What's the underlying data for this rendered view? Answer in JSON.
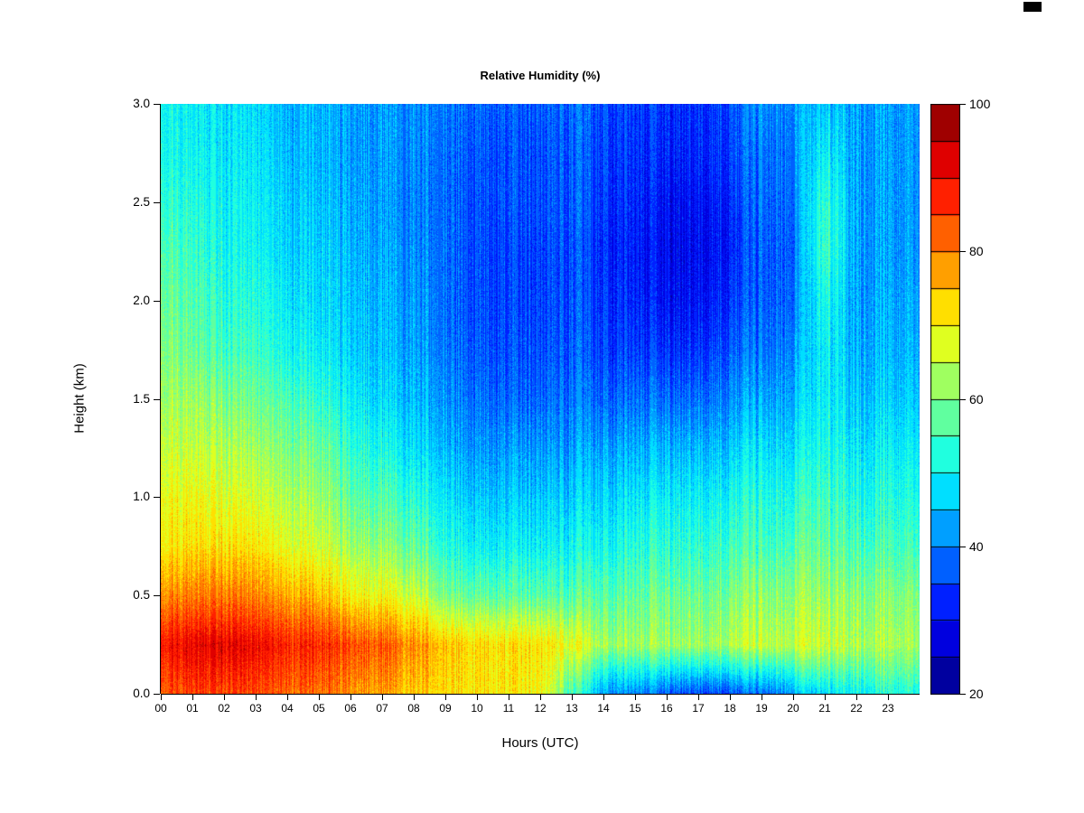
{
  "chart_data": {
    "type": "heatmap",
    "title": "Relative Humidity (%)",
    "xlabel": "Hours (UTC)",
    "ylabel": "Height (km)",
    "x_range": [
      0,
      24
    ],
    "x_hours": [
      0,
      1,
      2,
      3,
      4,
      5,
      6,
      7,
      8,
      9,
      10,
      11,
      12,
      13,
      14,
      15,
      16,
      17,
      18,
      19,
      20,
      21,
      22,
      23
    ],
    "x_tick_labels": [
      "00",
      "01",
      "02",
      "03",
      "04",
      "05",
      "06",
      "07",
      "08",
      "09",
      "10",
      "11",
      "12",
      "13",
      "14",
      "15",
      "16",
      "17",
      "18",
      "19",
      "20",
      "21",
      "22",
      "23"
    ],
    "y_range": [
      0,
      3
    ],
    "y_heights_km": [
      0,
      0.25,
      0.5,
      0.75,
      1.0,
      1.25,
      1.5,
      1.75,
      2.0,
      2.25,
      2.5,
      2.75,
      3.0
    ],
    "y_tick_values": [
      0,
      0.5,
      1.0,
      1.5,
      2.0,
      2.5,
      3.0
    ],
    "y_tick_labels": [
      "0.0",
      "0.5",
      "1.0",
      "1.5",
      "2.0",
      "2.5",
      "3.0"
    ],
    "values_percent_rows_by_height": [
      [
        84,
        85,
        85,
        84,
        82,
        81,
        79,
        77,
        74,
        72,
        72,
        71,
        70,
        55,
        42,
        40,
        37,
        36,
        36,
        38,
        44,
        48,
        50,
        52
      ],
      [
        90,
        91,
        92,
        90,
        88,
        87,
        85,
        83,
        79,
        74,
        73,
        72,
        72,
        68,
        63,
        62,
        62,
        63,
        64,
        65,
        66,
        66,
        64,
        63
      ],
      [
        80,
        80,
        81,
        79,
        77,
        75,
        71,
        69,
        66,
        59,
        58,
        57,
        57,
        56,
        57,
        57,
        58,
        59,
        60,
        61,
        62,
        62,
        61,
        60
      ],
      [
        72,
        72,
        72,
        71,
        68,
        66,
        63,
        61,
        58,
        52,
        50,
        50,
        50,
        50,
        51,
        52,
        53,
        54,
        55,
        55,
        57,
        58,
        56,
        55
      ],
      [
        70,
        69,
        68,
        66,
        64,
        62,
        58,
        56,
        53,
        48,
        46,
        46,
        46,
        46,
        47,
        48,
        49,
        50,
        51,
        52,
        53,
        55,
        52,
        52
      ],
      [
        67,
        65,
        64,
        62,
        60,
        58,
        54,
        51,
        48,
        44,
        42,
        42,
        42,
        42,
        43,
        43,
        44,
        45,
        46,
        48,
        49,
        52,
        49,
        49
      ],
      [
        64,
        62,
        60,
        58,
        56,
        53,
        50,
        47,
        45,
        41,
        39,
        38,
        38,
        39,
        38,
        38,
        38,
        39,
        41,
        43,
        45,
        50,
        46,
        46
      ],
      [
        62,
        58,
        55,
        54,
        51,
        49,
        47,
        45,
        43,
        39,
        37,
        36,
        36,
        37,
        35,
        34,
        33,
        34,
        37,
        39,
        42,
        50,
        44,
        44
      ],
      [
        60,
        56,
        53,
        52,
        49,
        47,
        46,
        44,
        42,
        38,
        36,
        35,
        35,
        36,
        34,
        32,
        30,
        31,
        34,
        37,
        40,
        52,
        43,
        43
      ],
      [
        58,
        54,
        51,
        50,
        47,
        46,
        45,
        43,
        41,
        38,
        36,
        35,
        35,
        36,
        33,
        31,
        29,
        30,
        32,
        37,
        39,
        55,
        43,
        42
      ],
      [
        55,
        52,
        50,
        49,
        46,
        45,
        44,
        42,
        40,
        38,
        36,
        36,
        36,
        37,
        34,
        32,
        30,
        31,
        33,
        38,
        40,
        54,
        43,
        42
      ],
      [
        53,
        50,
        49,
        48,
        45,
        44,
        43,
        42,
        41,
        38,
        37,
        36,
        36,
        37,
        35,
        33,
        32,
        33,
        35,
        39,
        41,
        50,
        43,
        42
      ],
      [
        52,
        49,
        48,
        47,
        44,
        44,
        43,
        42,
        41,
        39,
        38,
        37,
        37,
        38,
        36,
        34,
        33,
        34,
        36,
        41,
        42,
        46,
        43,
        42
      ]
    ],
    "colorbar": {
      "range": [
        20,
        100
      ],
      "level_step": 5,
      "tick_values": [
        20,
        40,
        60,
        80,
        100
      ],
      "tick_labels": [
        "20",
        "40",
        "60",
        "80",
        "100"
      ],
      "colormap": "jet",
      "position": "right"
    },
    "grid": false,
    "noise_striping": true
  }
}
